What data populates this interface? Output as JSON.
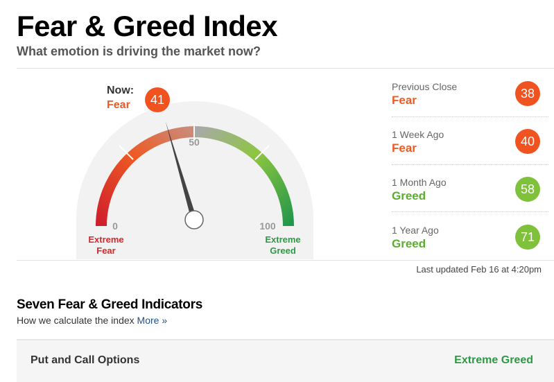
{
  "header": {
    "title": "Fear & Greed Index",
    "subtitle": "What emotion is driving the market now?"
  },
  "gauge": {
    "now_label": "Now:",
    "now_rating": "Fear",
    "now_value": "41",
    "value": 41,
    "min_label": "0",
    "mid_label": "50",
    "max_label": "100",
    "left_caption_1": "Extreme",
    "left_caption_2": "Fear",
    "right_caption_1": "Extreme",
    "right_caption_2": "Greed"
  },
  "history": [
    {
      "label": "Previous Close",
      "rating": "Fear",
      "value": "38",
      "color": "#f0531f",
      "rating_color": "#ee5a24"
    },
    {
      "label": "1 Week Ago",
      "rating": "Fear",
      "value": "40",
      "color": "#f0531f",
      "rating_color": "#ee5a24"
    },
    {
      "label": "1 Month Ago",
      "rating": "Greed",
      "value": "58",
      "color": "#7fc13a",
      "rating_color": "#5aae2e"
    },
    {
      "label": "1 Year Ago",
      "rating": "Greed",
      "value": "71",
      "color": "#7fc13a",
      "rating_color": "#5aae2e"
    }
  ],
  "last_updated": "Last updated Feb 16 at 4:20pm",
  "indicators": {
    "title": "Seven Fear & Greed Indicators",
    "subtitle": "How we calculate the index",
    "more_link": "More »",
    "first_row": {
      "label": "Put and Call Options",
      "rating": "Extreme Greed"
    }
  },
  "colors": {
    "fear": "#f0531f",
    "greed": "#7fc13a",
    "extreme_fear": "#d9262a",
    "extreme_greed": "#2e9944"
  }
}
